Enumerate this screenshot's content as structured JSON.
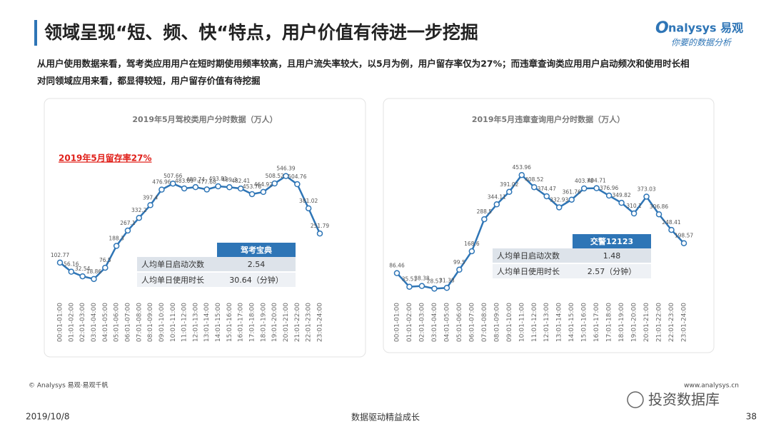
{
  "header": {
    "title": "领域呈现“短、频、快“特点，用户价值有待进一步挖掘",
    "logo": "nalysys 易观",
    "logo_tagline": "你要的数据分析"
  },
  "description": [
    "从用户使用数据来看，驾考类应用用户在短时期使用频率较高，且用户流失率较大，以5月为例，用户留存率仅为27%；而违章查询类应用用户启动频次和使用时长相",
    "对同领域应用来看，都显得较短，用户留存价值有待挖掘"
  ],
  "chart_data": [
    {
      "type": "line",
      "title": "2019年5月驾校类用户分时数据（万人）",
      "annotation": "2019年5月留存率27%",
      "categories": [
        "00:01-01:00",
        "01:01-02:00",
        "02:01-03:00",
        "03:01-04:00",
        "04:01-05:00",
        "05:01-06:00",
        "06:01-07:00",
        "07:01-08:00",
        "08:01-09:00",
        "09:01-10:00",
        "10:01-11:00",
        "11:01-12:00",
        "12:01-13:00",
        "13:01-14:00",
        "14:01-15:00",
        "15:01-16:00",
        "16:01-17:00",
        "17:01-18:00",
        "18:01-19:00",
        "19:01-20:00",
        "20:01-21:00",
        "21:01-22:00",
        "22:01-23:00",
        "23:01-24:00"
      ],
      "values": [
        102.77,
        56.16,
        32.54,
        18.86,
        76.5,
        188.3,
        267.1,
        332.2,
        397.4,
        476.96,
        507.66,
        483.09,
        489.74,
        477.68,
        493.81,
        489.3,
        482.41,
        453.76,
        464.92,
        508.52,
        546.39,
        504.76,
        381.02,
        251.79
      ],
      "color": "#2e75b6",
      "ylim": [
        0,
        600
      ],
      "table": {
        "header": "驾考宝典",
        "rows": [
          [
            "人均单日启动次数",
            "2.54"
          ],
          [
            "人均单日使用时长",
            "30.64（分钟）"
          ]
        ]
      }
    },
    {
      "type": "line",
      "title": "2019年5月违章查询用户分时数据（万人）",
      "categories": [
        "00:01-01:00",
        "01:01-02:00",
        "02:01-03:00",
        "03:01-04:00",
        "04:01-05:00",
        "05:01-06:00",
        "06:01-07:00",
        "07:01-08:00",
        "08:01-09:00",
        "09:01-10:00",
        "10:01-11:00",
        "11:01-12:00",
        "12:01-13:00",
        "13:01-14:00",
        "14:01-15:00",
        "15:01-16:00",
        "16:01-17:00",
        "17:01-18:00",
        "18:01-19:00",
        "19:01-20:00",
        "20:01-21:00",
        "21:01-22:00",
        "22:01-23:00",
        "23:01-24:00"
      ],
      "values": [
        86.46,
        35.51,
        38.38,
        28.57,
        31.38,
        99.5,
        168.6,
        288.5,
        344.11,
        391.02,
        453.96,
        408.52,
        374.47,
        332.93,
        361.76,
        403.78,
        404.71,
        376.96,
        349.82,
        310.1,
        373.03,
        306.86,
        248.41,
        198.57
      ],
      "color": "#2e75b6",
      "ylim": [
        0,
        500
      ],
      "table": {
        "header": "交警12123",
        "rows": [
          [
            "人均单日启动次数",
            "1.48"
          ],
          [
            "人均单日使用时长",
            "2.57（分钟）"
          ]
        ]
      }
    }
  ],
  "footer": {
    "source": "© Analysys 易观·易观千帆",
    "url": "www.analysys.cn",
    "date": "2019/10/8",
    "slogan": "数据驱动精益成长",
    "page": "38",
    "watermark": "投资数据库"
  }
}
